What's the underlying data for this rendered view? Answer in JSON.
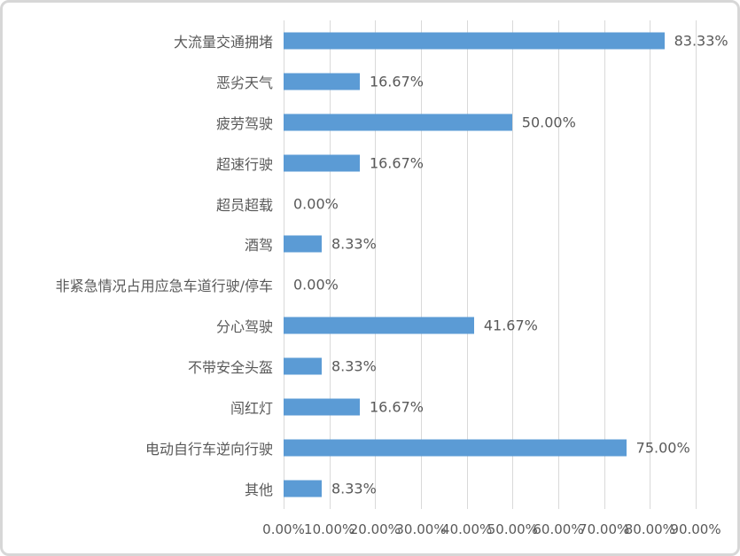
{
  "chart_data": {
    "type": "bar",
    "orientation": "horizontal",
    "title": "",
    "xlabel": "",
    "ylabel": "",
    "xlim": [
      0,
      90
    ],
    "grid": "vertical",
    "legend_position": "none",
    "categories": [
      "大流量交通拥堵",
      "恶劣天气",
      "疲劳驾驶",
      "超速行驶",
      "超员超载",
      "酒驾",
      "非紧急情况占用应急车道行驶/停车",
      "分心驾驶",
      "不带安全头盔",
      "闯红灯",
      "电动自行车逆向行驶",
      "其他"
    ],
    "values": [
      83.33,
      16.67,
      50.0,
      16.67,
      0.0,
      8.33,
      0.0,
      41.67,
      8.33,
      16.67,
      75.0,
      8.33
    ],
    "value_labels": [
      "83.33%",
      "16.67%",
      "50.00%",
      "16.67%",
      "0.00%",
      "8.33%",
      "0.00%",
      "41.67%",
      "8.33%",
      "16.67%",
      "75.00%",
      "8.33%"
    ],
    "x_ticks": [
      "0.00%",
      "10.00%",
      "20.00%",
      "30.00%",
      "40.00%",
      "50.00%",
      "60.00%",
      "70.00%",
      "80.00%",
      "90.00%"
    ],
    "colors": {
      "bar": "#5b9bd5",
      "gridline": "#d9d9d9",
      "text": "#595959",
      "frame_border": "#d7d7d7",
      "background": "#ffffff"
    }
  }
}
